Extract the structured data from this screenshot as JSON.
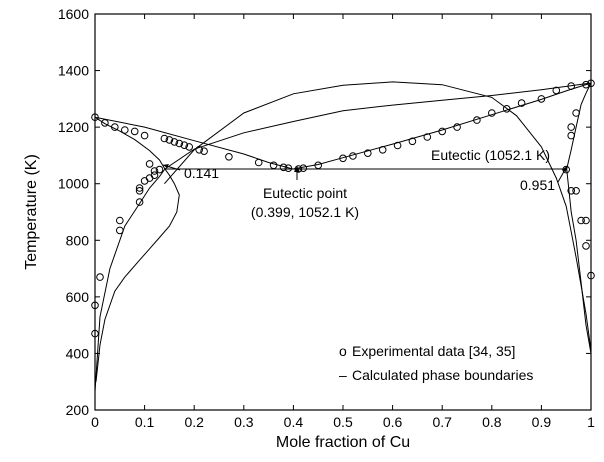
{
  "chart_data": {
    "type": "scatter",
    "title": "",
    "xlabel": "Mole fraction of Cu",
    "ylabel": "Temperature (K)",
    "xlim": [
      0,
      1
    ],
    "ylim": [
      200,
      1600
    ],
    "xticks": [
      "0",
      "0.1",
      "0.2",
      "0.3",
      "0.4",
      "0.5",
      "0.6",
      "0.7",
      "0.8",
      "0.9",
      "1"
    ],
    "yticks": [
      "200",
      "400",
      "600",
      "800",
      "1000",
      "1200",
      "1400",
      "1600"
    ],
    "grid": false,
    "legend": {
      "placement": "bottom-right",
      "entries": [
        {
          "marker": "o",
          "label": "Experimental data [34, 35]"
        },
        {
          "marker": "–",
          "label": "Calculated phase boundaries"
        }
      ]
    },
    "series": [
      {
        "kind": "line",
        "points": [
          [
            0,
            1235
          ],
          [
            0.02,
            1212
          ],
          [
            0.05,
            1186
          ],
          [
            0.08,
            1156
          ],
          [
            0.11,
            1117
          ],
          [
            0.13,
            1084
          ],
          [
            0.141,
            1052.1
          ]
        ]
      },
      {
        "kind": "line",
        "points": [
          [
            0.141,
            1052.1
          ],
          [
            0.2,
            1122
          ],
          [
            0.3,
            1180
          ],
          [
            0.4,
            1220
          ],
          [
            0.5,
            1258
          ],
          [
            0.6,
            1278
          ],
          [
            0.7,
            1295
          ],
          [
            0.8,
            1312
          ],
          [
            0.9,
            1332
          ],
          [
            1.0,
            1356
          ]
        ]
      },
      {
        "kind": "line",
        "points": [
          [
            0,
            1235
          ],
          [
            0.1,
            1200
          ],
          [
            0.2,
            1152
          ],
          [
            0.3,
            1105
          ],
          [
            0.35,
            1075
          ],
          [
            0.399,
            1052.1
          ],
          [
            0.45,
            1068
          ],
          [
            0.5,
            1092
          ],
          [
            0.6,
            1140
          ],
          [
            0.7,
            1190
          ],
          [
            0.8,
            1244
          ],
          [
            0.9,
            1298
          ],
          [
            0.95,
            1328
          ],
          [
            1.0,
            1356
          ]
        ]
      },
      {
        "kind": "line",
        "points": [
          [
            0,
            265
          ],
          [
            0.01,
            530
          ],
          [
            0.03,
            700
          ],
          [
            0.06,
            850
          ],
          [
            0.09,
            930
          ],
          [
            0.11,
            985
          ],
          [
            0.13,
            1025
          ],
          [
            0.141,
            1052.1
          ]
        ]
      },
      {
        "kind": "line",
        "points": [
          [
            0.141,
            1052.1
          ],
          [
            0.15,
            1030
          ],
          [
            0.16,
            1000
          ],
          [
            0.17,
            960
          ],
          [
            0.165,
            900
          ],
          [
            0.15,
            850
          ],
          [
            0.13,
            810
          ],
          [
            0.11,
            770
          ],
          [
            0.09,
            730
          ],
          [
            0.06,
            670
          ],
          [
            0.04,
            620
          ],
          [
            0.02,
            520
          ],
          [
            0.01,
            430
          ],
          [
            0.002,
            300
          ]
        ]
      },
      {
        "kind": "line",
        "points": [
          [
            0.14,
            1000
          ],
          [
            0.2,
            1120
          ],
          [
            0.3,
            1250
          ],
          [
            0.4,
            1318
          ],
          [
            0.5,
            1348
          ],
          [
            0.6,
            1360
          ],
          [
            0.7,
            1350
          ],
          [
            0.8,
            1305
          ],
          [
            0.85,
            1240
          ],
          [
            0.9,
            1130
          ],
          [
            0.93,
            1020
          ],
          [
            0.95,
            920
          ],
          [
            0.96,
            830
          ],
          [
            0.97,
            740
          ],
          [
            0.98,
            640
          ],
          [
            0.99,
            540
          ],
          [
            1.0,
            410
          ]
        ]
      },
      {
        "kind": "line",
        "points": [
          [
            0.951,
            1052.1
          ],
          [
            0.96,
            1120
          ],
          [
            0.97,
            1200
          ],
          [
            0.98,
            1280
          ],
          [
            0.99,
            1320
          ],
          [
            1.0,
            1356
          ]
        ]
      },
      {
        "kind": "line",
        "points": [
          [
            0.951,
            1052.1
          ],
          [
            0.96,
            900
          ],
          [
            0.97,
            800
          ],
          [
            0.98,
            650
          ],
          [
            0.99,
            500
          ],
          [
            1.0,
            400
          ]
        ]
      },
      {
        "kind": "line",
        "points": [
          [
            0.141,
            1052.1
          ],
          [
            0.951,
            1052.1
          ]
        ]
      },
      {
        "kind": "markers",
        "points": [
          [
            0,
            1235
          ],
          [
            0.02,
            1215
          ],
          [
            0.04,
            1200
          ],
          [
            0.06,
            1190
          ],
          [
            0.08,
            1185
          ],
          [
            0.1,
            1170
          ],
          [
            0.14,
            1160
          ],
          [
            0.15,
            1155
          ],
          [
            0.16,
            1148
          ],
          [
            0.17,
            1142
          ],
          [
            0.18,
            1136
          ],
          [
            0.19,
            1130
          ],
          [
            0.21,
            1120
          ],
          [
            0.22,
            1115
          ],
          [
            0.27,
            1095
          ],
          [
            0.33,
            1075
          ],
          [
            0.36,
            1065
          ],
          [
            0.38,
            1058
          ],
          [
            0.39,
            1055
          ],
          [
            0.41,
            1052
          ],
          [
            0.42,
            1055
          ],
          [
            0.45,
            1065
          ],
          [
            0.5,
            1090
          ],
          [
            0.52,
            1098
          ],
          [
            0.55,
            1108
          ],
          [
            0.58,
            1120
          ],
          [
            0.61,
            1135
          ],
          [
            0.64,
            1150
          ],
          [
            0.67,
            1165
          ],
          [
            0.7,
            1185
          ],
          [
            0.73,
            1200
          ],
          [
            0.77,
            1225
          ],
          [
            0.8,
            1250
          ],
          [
            0.83,
            1265
          ],
          [
            0.86,
            1285
          ],
          [
            0.9,
            1300
          ],
          [
            0.93,
            1330
          ],
          [
            0.96,
            1345
          ],
          [
            0.99,
            1350
          ],
          [
            1.0,
            1355
          ],
          [
            0.11,
            1070
          ],
          [
            0.12,
            1045
          ],
          [
            0.13,
            1050
          ],
          [
            0.1,
            1010
          ],
          [
            0.09,
            975
          ],
          [
            0.11,
            1020
          ],
          [
            0.12,
            1030
          ],
          [
            0.09,
            935
          ],
          [
            0.09,
            985
          ],
          [
            0.05,
            870
          ],
          [
            0.05,
            835
          ],
          [
            0.01,
            670
          ],
          [
            0.0,
            570
          ],
          [
            0.0,
            470
          ],
          [
            0.95,
            1050
          ],
          [
            0.96,
            1170
          ],
          [
            0.96,
            1200
          ],
          [
            0.97,
            1250
          ],
          [
            0.96,
            975
          ],
          [
            0.97,
            975
          ],
          [
            0.98,
            870
          ],
          [
            0.99,
            780
          ],
          [
            0.99,
            870
          ],
          [
            1.0,
            675
          ]
        ]
      }
    ],
    "annotations": [
      {
        "text": "0.141",
        "points_to": [
          0.141,
          1052.1
        ]
      },
      {
        "text": "Eutectic point",
        "points_to": [
          0.399,
          1052.1
        ]
      },
      {
        "text": "(0.399, 1052.1 K)"
      },
      {
        "text": "Eutectic (1052.1 K)"
      },
      {
        "text": "0.951",
        "points_to": [
          0.951,
          1052.1
        ]
      }
    ]
  }
}
